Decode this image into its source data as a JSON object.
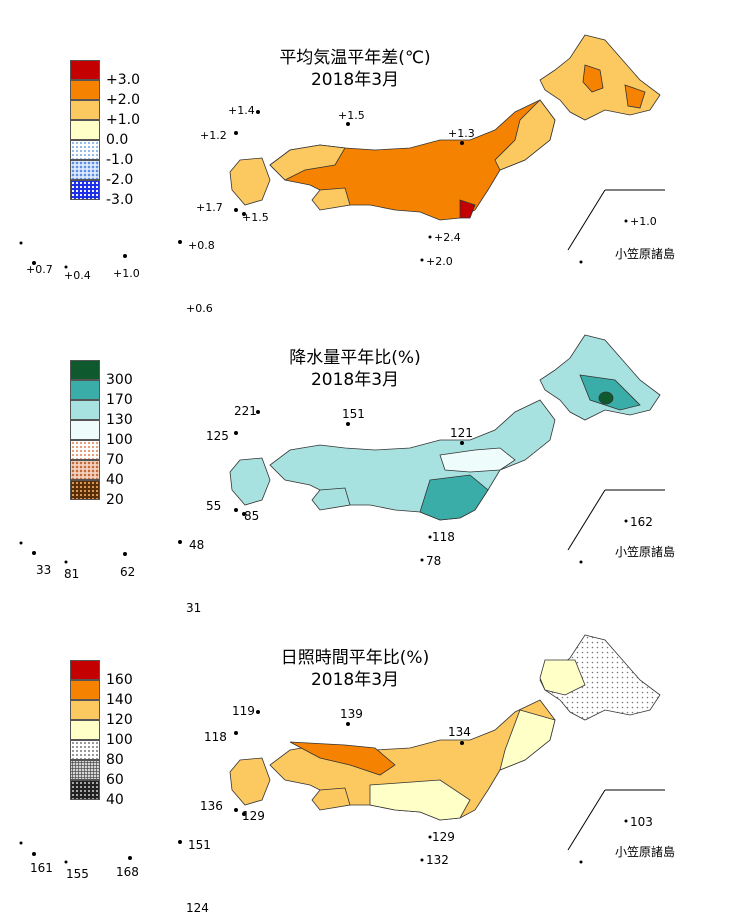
{
  "temperature": {
    "title": "平均気温平年差(℃)",
    "period": "2018年3月",
    "legend": [
      "+3.0",
      "+2.0",
      "+1.0",
      "0.0",
      "-1.0",
      "-2.0",
      "-3.0"
    ],
    "legend_colors": [
      "#c40000",
      "#f58200",
      "#fcc860",
      "#ffffc8",
      "hatch-l",
      "hatch-m",
      "hatch-d"
    ],
    "values": {
      "rebun": "+1.4",
      "tsushima": "+1.2",
      "oki": "+1.5",
      "sado": "+1.3",
      "tanegashima": "+1.7",
      "yakushima": "+1.5",
      "hachijo": "+2.4",
      "aogashima": "+2.0",
      "amami": "+0.8",
      "yonaguni": "+0.7",
      "ishigaki": "+0.4",
      "naha": "+1.0",
      "minamidaito": "+0.6",
      "chichijima": "+1.0"
    },
    "inset_label": "小笠原諸島"
  },
  "precipitation": {
    "title": "降水量平年比(%)",
    "period": "2018年3月",
    "legend": [
      "300",
      "170",
      "130",
      "100",
      "70",
      "40",
      "20"
    ],
    "legend_colors": [
      "#0e5a2e",
      "#3aada8",
      "#a8e2e0",
      "#eefcfc",
      "br-l",
      "br-m",
      "br-d"
    ],
    "values": {
      "rebun": "221",
      "tsushima": "125",
      "oki": "151",
      "sado": "121",
      "tanegashima": "55",
      "yakushima": "85",
      "hachijo": "118",
      "aogashima": "78",
      "amami": "48",
      "yonaguni": "33",
      "ishigaki": "81",
      "naha": "62",
      "minamidaito": "31",
      "chichijima": "162"
    },
    "inset_label": "小笠原諸島"
  },
  "sunshine": {
    "title": "日照時間平年比(%)",
    "period": "2018年3月",
    "legend": [
      "160",
      "140",
      "120",
      "100",
      "80",
      "60",
      "40"
    ],
    "legend_colors": [
      "#c40000",
      "#f58200",
      "#fcc860",
      "#ffffc8",
      "gr-l",
      "gr-m",
      "gr-d"
    ],
    "values": {
      "rebun": "119",
      "tsushima": "118",
      "oki": "139",
      "sado": "134",
      "tanegashima": "136",
      "yakushima": "129",
      "hachijo": "129",
      "aogashima": "132",
      "amami": "151",
      "yonaguni": "161",
      "ishigaki": "155",
      "naha": "168",
      "minamidaito": "124",
      "chichijima": "103"
    },
    "inset_label": "小笠原諸島"
  }
}
